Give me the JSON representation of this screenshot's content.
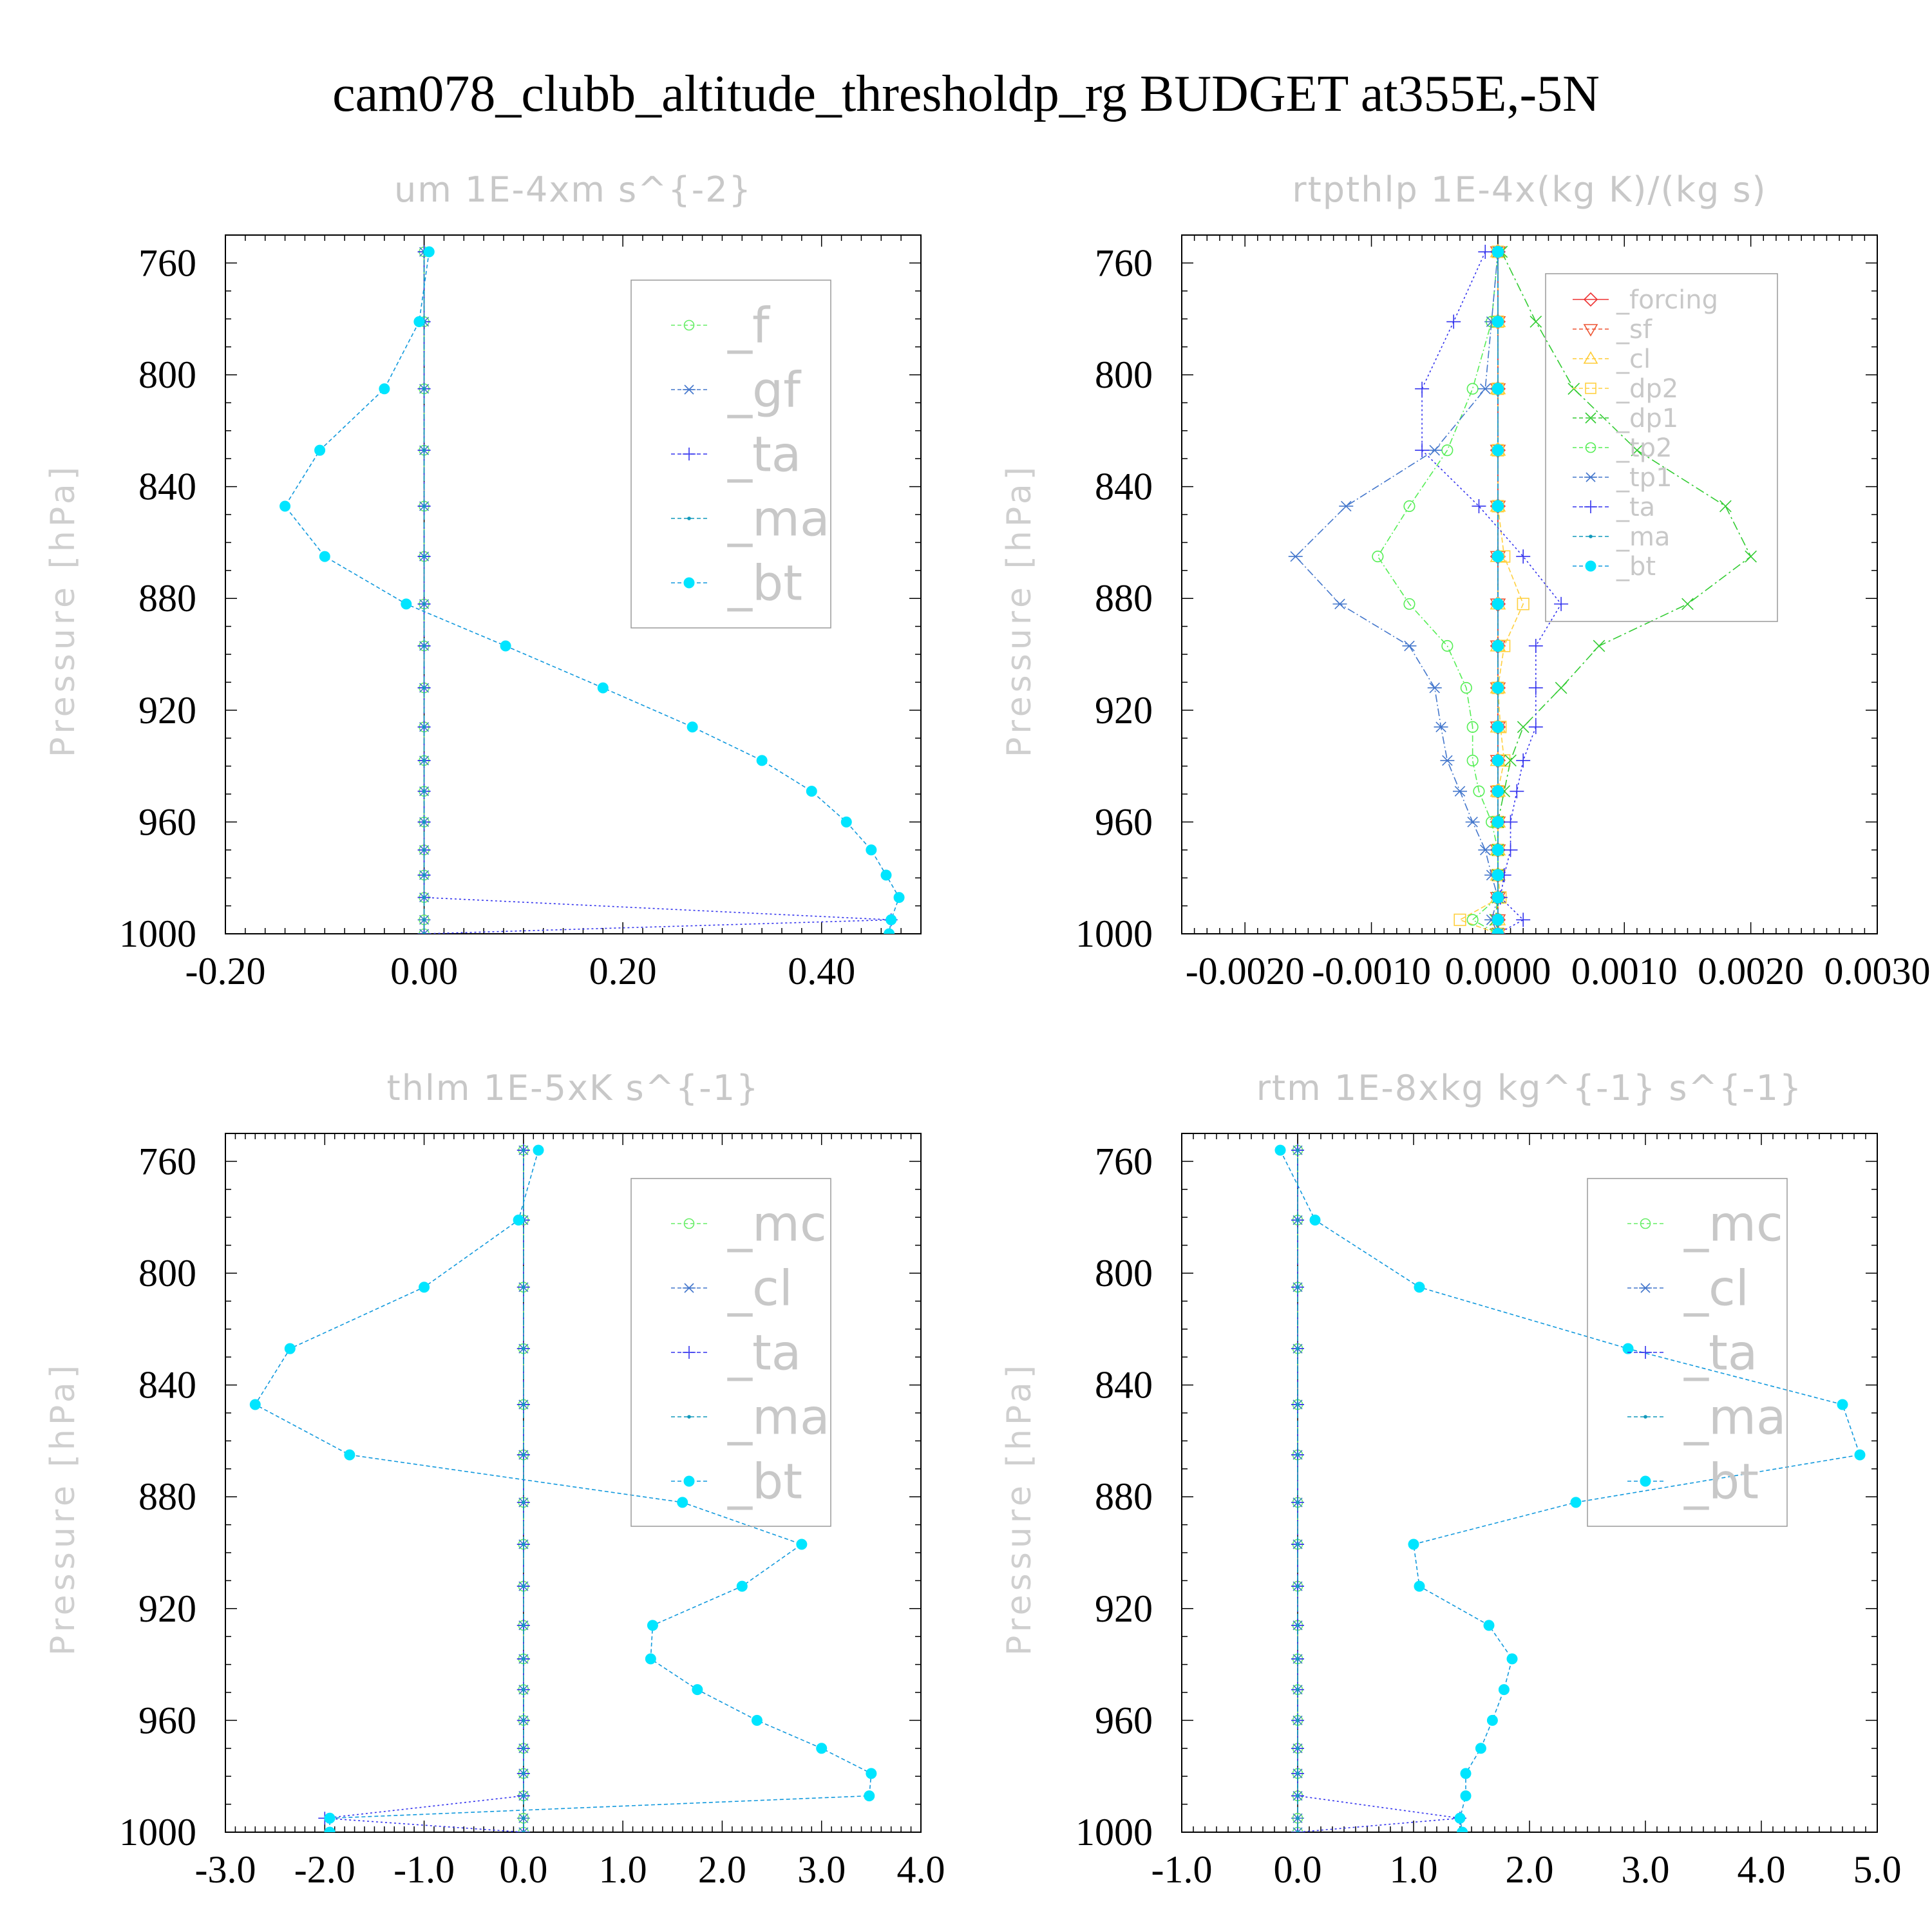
{
  "title": "cam078_clubb_altitude_thresholdp_rg  BUDGET at355E,-5N",
  "chart_data": [
    {
      "type": "line",
      "title": "um   1E-4xm s^{-2}",
      "ylabel": "Pressure [hPa]",
      "xlim": [
        -0.2,
        0.5
      ],
      "ylim": [
        750,
        1000
      ],
      "xticks": [
        "-0.20",
        "0.00",
        "0.20",
        "0.40"
      ],
      "xtick_values": [
        -0.2,
        0.0,
        0.2,
        0.4
      ],
      "yticks": [
        "760",
        "800",
        "840",
        "880",
        "920",
        "960",
        "1000"
      ],
      "ytick_values": [
        760,
        800,
        840,
        880,
        920,
        960,
        1000
      ],
      "legend_position": "top-right",
      "legend_size": "large",
      "y": [
        756,
        781,
        805,
        827,
        847,
        865,
        882,
        897,
        912,
        926,
        938,
        949,
        960,
        970,
        979,
        987,
        995,
        1000
      ],
      "series": [
        {
          "name": "_f",
          "color": "#66ee66",
          "marker": "circle-open",
          "dash": "6 4",
          "values": [
            0,
            0,
            0,
            0,
            0,
            0,
            0,
            0,
            0,
            0,
            0,
            0,
            0,
            0,
            0,
            0,
            0,
            0
          ]
        },
        {
          "name": "_gf",
          "color": "#4477cc",
          "marker": "asterisk",
          "dash": "10 4 2 4",
          "values": [
            0,
            0,
            0,
            0,
            0,
            0,
            0,
            0,
            0,
            0,
            0,
            0,
            0,
            0,
            0,
            0,
            0,
            0
          ]
        },
        {
          "name": "_ta",
          "color": "#3333ee",
          "marker": "plus",
          "dash": "3 4",
          "values": [
            0,
            0,
            0,
            0,
            0,
            0,
            0,
            0,
            0,
            0,
            0,
            0,
            0,
            0,
            0,
            0,
            0.47,
            0
          ]
        },
        {
          "name": "_ma",
          "color": "#1199bb",
          "marker": "dot",
          "dash": "8 4",
          "values": [
            0,
            0,
            0,
            0,
            0,
            0,
            0,
            0,
            0,
            0,
            0,
            0,
            0,
            0,
            0,
            0,
            0,
            0
          ]
        },
        {
          "name": "_bt",
          "color": "#00e5ff",
          "marker": "filled-circle",
          "dash": "6 4",
          "lineColor": "#1199dd",
          "values": [
            0.005,
            -0.005,
            -0.04,
            -0.105,
            -0.14,
            -0.1,
            -0.018,
            0.082,
            0.18,
            0.27,
            0.34,
            0.39,
            0.425,
            0.45,
            0.465,
            0.478,
            0.47,
            0.468
          ]
        }
      ]
    },
    {
      "type": "line",
      "title": "rtpthlp   1E-4x(kg K)/(kg s)",
      "ylabel": "Pressure [hPa]",
      "xlim": [
        -0.0025,
        0.003
      ],
      "ylim": [
        750,
        1000
      ],
      "xticks": [
        "-0.0020",
        "-0.0010",
        "0.0000",
        "0.0010",
        "0.0020",
        "0.0030"
      ],
      "xtick_values": [
        -0.002,
        -0.001,
        0.0,
        0.001,
        0.002,
        0.003
      ],
      "yticks": [
        "760",
        "800",
        "840",
        "880",
        "920",
        "960",
        "1000"
      ],
      "ytick_values": [
        760,
        800,
        840,
        880,
        920,
        960,
        1000
      ],
      "legend_position": "top-right",
      "legend_size": "small",
      "y": [
        756,
        781,
        805,
        827,
        847,
        865,
        882,
        897,
        912,
        926,
        938,
        949,
        960,
        970,
        979,
        987,
        995,
        1000
      ],
      "series": [
        {
          "name": "_forcing",
          "color": "#ee3333",
          "marker": "diamond-open",
          "dash": "none",
          "values": [
            0,
            0,
            0,
            0,
            0,
            0,
            0,
            0,
            0,
            0,
            0,
            0,
            0,
            0,
            0,
            0,
            0,
            0
          ]
        },
        {
          "name": "_sf",
          "color": "#ee5533",
          "marker": "triangle-down-open",
          "dash": "6 4",
          "values": [
            0,
            0,
            0,
            0,
            0,
            0,
            0,
            0,
            0,
            0,
            0,
            0,
            0,
            0,
            0,
            0,
            0,
            0
          ]
        },
        {
          "name": "_cl",
          "color": "#ffcc33",
          "marker": "triangle-up-open",
          "dash": "3 4",
          "values": [
            0,
            0,
            0,
            0,
            0,
            0,
            0,
            0,
            0,
            0,
            0,
            0,
            0,
            0,
            0,
            0,
            0,
            0
          ]
        },
        {
          "name": "_dp2",
          "color": "#ffd040",
          "marker": "square-open",
          "dash": "8 4",
          "values": [
            0,
            0,
            0,
            0,
            0,
            5e-05,
            0.0002,
            5e-05,
            0,
            2e-05,
            5e-05,
            0,
            0,
            0,
            0,
            2e-05,
            -0.0003,
            0
          ]
        },
        {
          "name": "_dp1",
          "color": "#33cc33",
          "marker": "x",
          "dash": "14 5 3 5",
          "values": [
            3e-05,
            0.0003,
            0.0006,
            0.0011,
            0.0018,
            0.002,
            0.0015,
            0.0008,
            0.0005,
            0.0002,
            0.0001,
            5e-05,
            0,
            0,
            0,
            0,
            -2e-05,
            0
          ]
        },
        {
          "name": "_tp2",
          "color": "#55ee55",
          "marker": "circle-open",
          "dash": "10 4 2 4",
          "values": [
            0,
            -5e-05,
            -0.0002,
            -0.0004,
            -0.0007,
            -0.00095,
            -0.0007,
            -0.0004,
            -0.00025,
            -0.0002,
            -0.0002,
            -0.00015,
            -5e-05,
            0,
            0,
            0,
            -0.0002,
            0
          ]
        },
        {
          "name": "_tp1",
          "color": "#4477cc",
          "marker": "asterisk",
          "dash": "12 4 2 4",
          "values": [
            0,
            -5e-05,
            -0.0001,
            -0.0005,
            -0.0012,
            -0.0016,
            -0.00125,
            -0.0007,
            -0.0005,
            -0.00045,
            -0.0004,
            -0.0003,
            -0.0002,
            -0.0001,
            -5e-05,
            0,
            -5e-05,
            0
          ]
        },
        {
          "name": "_ta",
          "color": "#3333ee",
          "marker": "plus",
          "dash": "3 4",
          "values": [
            -0.0001,
            -0.00035,
            -0.0006,
            -0.0006,
            -0.00015,
            0.0002,
            0.0005,
            0.0003,
            0.0003,
            0.0003,
            0.0002,
            0.00015,
            0.0001,
            0.0001,
            5e-05,
            2e-05,
            0.0002,
            0
          ]
        },
        {
          "name": "_ma",
          "color": "#1199bb",
          "marker": "dot",
          "dash": "8 4",
          "values": [
            0,
            0,
            0,
            0,
            0,
            0,
            0,
            0,
            0,
            0,
            0,
            0,
            0,
            0,
            0,
            0,
            0,
            0
          ]
        },
        {
          "name": "_bt",
          "color": "#00e5ff",
          "marker": "filled-circle",
          "dash": "6 4",
          "lineColor": "#1199dd",
          "values": [
            0,
            0,
            0,
            0,
            0,
            0,
            0,
            0,
            0,
            0,
            0,
            0,
            0,
            0,
            0,
            0,
            0,
            0
          ]
        }
      ]
    },
    {
      "type": "line",
      "title": "thlm   1E-5xK s^{-1}",
      "ylabel": "Pressure [hPa]",
      "xlim": [
        -3.0,
        4.0
      ],
      "ylim": [
        750,
        1000
      ],
      "xticks": [
        "-3.0",
        "-2.0",
        "-1.0",
        "0.0",
        "1.0",
        "2.0",
        "3.0",
        "4.0"
      ],
      "xtick_values": [
        -3,
        -2,
        -1,
        0,
        1,
        2,
        3,
        4
      ],
      "yticks": [
        "760",
        "800",
        "840",
        "880",
        "920",
        "960",
        "1000"
      ],
      "ytick_values": [
        760,
        800,
        840,
        880,
        920,
        960,
        1000
      ],
      "legend_position": "top-right",
      "legend_size": "large",
      "y": [
        756,
        781,
        805,
        827,
        847,
        865,
        882,
        897,
        912,
        926,
        938,
        949,
        960,
        970,
        979,
        987,
        995,
        1000
      ],
      "series": [
        {
          "name": "_mc",
          "color": "#66ee66",
          "marker": "circle-open",
          "dash": "6 4",
          "values": [
            0,
            0,
            0,
            0,
            0,
            0,
            0,
            0,
            0,
            0,
            0,
            0,
            0,
            0,
            0,
            0,
            0,
            0
          ]
        },
        {
          "name": "_cl",
          "color": "#4477cc",
          "marker": "asterisk",
          "dash": "10 4 2 4",
          "values": [
            0,
            0,
            0,
            0,
            0,
            0,
            0,
            0,
            0,
            0,
            0,
            0,
            0,
            0,
            0,
            0,
            0,
            0
          ]
        },
        {
          "name": "_ta",
          "color": "#3333ee",
          "marker": "plus",
          "dash": "3 4",
          "values": [
            0,
            0,
            0,
            0,
            0,
            0,
            0,
            0,
            0,
            0,
            0,
            0,
            0,
            0,
            0,
            0,
            -2.0,
            0
          ]
        },
        {
          "name": "_ma",
          "color": "#1199bb",
          "marker": "dot",
          "dash": "8 4",
          "values": [
            0,
            0,
            0,
            0,
            0,
            0,
            0,
            0,
            0,
            0,
            0,
            0,
            0,
            0,
            0,
            0,
            0,
            0
          ]
        },
        {
          "name": "_bt",
          "color": "#00e5ff",
          "marker": "filled-circle",
          "dash": "6 4",
          "lineColor": "#1199dd",
          "values": [
            0.15,
            -0.05,
            -1.0,
            -2.35,
            -2.7,
            -1.75,
            1.6,
            2.8,
            2.2,
            1.3,
            1.28,
            1.75,
            2.35,
            3.0,
            3.5,
            3.48,
            -1.95,
            -1.95
          ]
        }
      ]
    },
    {
      "type": "line",
      "title": "rtm   1E-8xkg kg^{-1} s^{-1}",
      "ylabel": "Pressure [hPa]",
      "xlim": [
        -1.0,
        5.0
      ],
      "ylim": [
        750,
        1000
      ],
      "xticks": [
        "-1.0",
        "0.0",
        "1.0",
        "2.0",
        "3.0",
        "4.0",
        "5.0"
      ],
      "xtick_values": [
        -1,
        0,
        1,
        2,
        3,
        4,
        5
      ],
      "yticks": [
        "760",
        "800",
        "840",
        "880",
        "920",
        "960",
        "1000"
      ],
      "ytick_values": [
        760,
        800,
        840,
        880,
        920,
        960,
        1000
      ],
      "legend_position": "top-right",
      "legend_size": "large",
      "y": [
        756,
        781,
        805,
        827,
        847,
        865,
        882,
        897,
        912,
        926,
        938,
        949,
        960,
        970,
        979,
        987,
        995,
        1000
      ],
      "series": [
        {
          "name": "_mc",
          "color": "#66ee66",
          "marker": "circle-open",
          "dash": "6 4",
          "values": [
            0,
            0,
            0,
            0,
            0,
            0,
            0,
            0,
            0,
            0,
            0,
            0,
            0,
            0,
            0,
            0,
            0,
            0
          ]
        },
        {
          "name": "_cl",
          "color": "#4477cc",
          "marker": "asterisk",
          "dash": "10 4 2 4",
          "values": [
            0,
            0,
            0,
            0,
            0,
            0,
            0,
            0,
            0,
            0,
            0,
            0,
            0,
            0,
            0,
            0,
            0,
            0
          ]
        },
        {
          "name": "_ta",
          "color": "#3333ee",
          "marker": "plus",
          "dash": "3 4",
          "values": [
            0,
            0,
            0,
            0,
            0,
            0,
            0,
            0,
            0,
            0,
            0,
            0,
            0,
            0,
            0,
            0,
            1.4,
            0
          ]
        },
        {
          "name": "_ma",
          "color": "#1199bb",
          "marker": "dot",
          "dash": "8 4",
          "values": [
            0,
            0,
            0,
            0,
            0,
            0,
            0,
            0,
            0,
            0,
            0,
            0,
            0,
            0,
            0,
            0,
            0,
            0
          ]
        },
        {
          "name": "_bt",
          "color": "#00e5ff",
          "marker": "filled-circle",
          "dash": "6 4",
          "lineColor": "#1199dd",
          "values": [
            -0.15,
            0.15,
            1.05,
            2.85,
            4.7,
            4.85,
            2.4,
            1.0,
            1.05,
            1.65,
            1.85,
            1.78,
            1.68,
            1.58,
            1.45,
            1.45,
            1.4,
            1.42
          ]
        }
      ]
    }
  ]
}
